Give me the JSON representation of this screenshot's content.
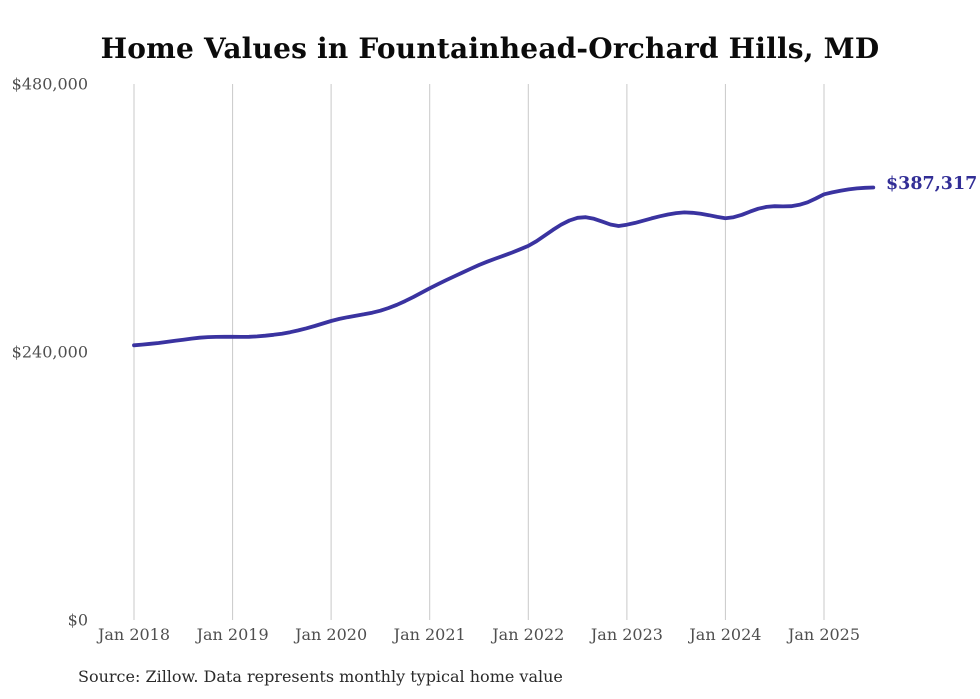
{
  "title": "Home Values in Fountainhead-Orchard Hills, MD",
  "end_label": "$387,317",
  "source_note": "Source: Zillow. Data represents monthly typical home value",
  "colors": {
    "line": "#3a33a0",
    "end_label_text": "#322e96",
    "gridline": "#c9c9c9",
    "axis_text": "#4f4f4f",
    "title_text": "#0b0b0b",
    "source_text": "#2b2b2b",
    "background": "#ffffff"
  },
  "chart_data": {
    "type": "line",
    "title": "Home Values in Fountainhead-Orchard Hills, MD",
    "xlabel": "",
    "ylabel": "",
    "ylim": [
      0,
      480000
    ],
    "y_ticks": [
      0,
      240000,
      480000
    ],
    "y_tick_labels": [
      "$0",
      "$240,000",
      "$480,000"
    ],
    "x_tick_labels": [
      "Jan 2018",
      "Jan 2019",
      "Jan 2020",
      "Jan 2021",
      "Jan 2022",
      "Jan 2023",
      "Jan 2024",
      "Jan 2025"
    ],
    "grid": "vertical-only",
    "legend": "none",
    "frequency": "monthly",
    "start_month": "2018-01",
    "end_month": "2025-07",
    "last_value": 387317,
    "series": [
      {
        "name": "Typical home value",
        "values": [
          246000,
          246600,
          247300,
          248100,
          249000,
          250000,
          251000,
          252000,
          252800,
          253300,
          253500,
          253600,
          253600,
          253500,
          253600,
          254000,
          254600,
          255400,
          256400,
          257700,
          259300,
          261200,
          263300,
          265500,
          267800,
          269600,
          271200,
          272500,
          273800,
          275200,
          277000,
          279400,
          282300,
          285600,
          289200,
          293100,
          297000,
          300700,
          304300,
          307800,
          311200,
          314600,
          317900,
          320900,
          323600,
          326200,
          329000,
          332000,
          335000,
          339200,
          344200,
          349300,
          354000,
          357800,
          360200,
          360700,
          359300,
          356800,
          354200,
          352800,
          354000,
          355600,
          357600,
          359600,
          361500,
          363100,
          364400,
          365000,
          364700,
          363800,
          362500,
          361000,
          359800,
          360700,
          362900,
          365700,
          368300,
          369900,
          370600,
          370400,
          370600,
          371800,
          374100,
          377500,
          381200,
          382900,
          384400,
          385600,
          386500,
          387000,
          387317
        ]
      }
    ]
  }
}
